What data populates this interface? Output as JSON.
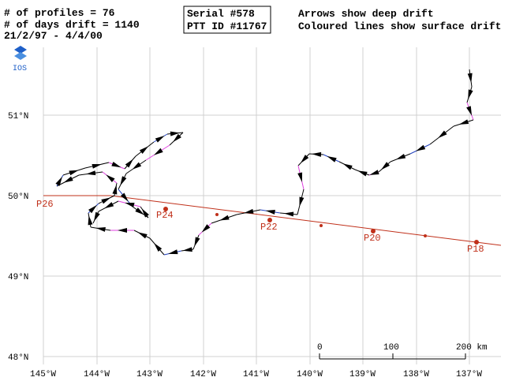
{
  "header": {
    "lines": [
      "# of profiles =  76",
      "# of days drift =  1140",
      "21/2/97 - 4/4/00"
    ],
    "box": [
      "Serial #578",
      "PTT ID #11767"
    ],
    "legend": [
      "Arrows show deep drift",
      "Coloured lines show surface drift"
    ],
    "logo": "IOS"
  },
  "longitude_labels": [
    "145°W",
    "144°W",
    "143°W",
    "142°W",
    "141°W",
    "140°W",
    "139°W",
    "138°W",
    "137°W"
  ],
  "latitude_labels": [
    "51°N",
    "50°N",
    "49°N",
    "48°N"
  ],
  "stations": [
    "P26",
    "P24",
    "P22",
    "P20",
    "P18"
  ],
  "scale": [
    "0",
    "100",
    "200 km"
  ]
}
